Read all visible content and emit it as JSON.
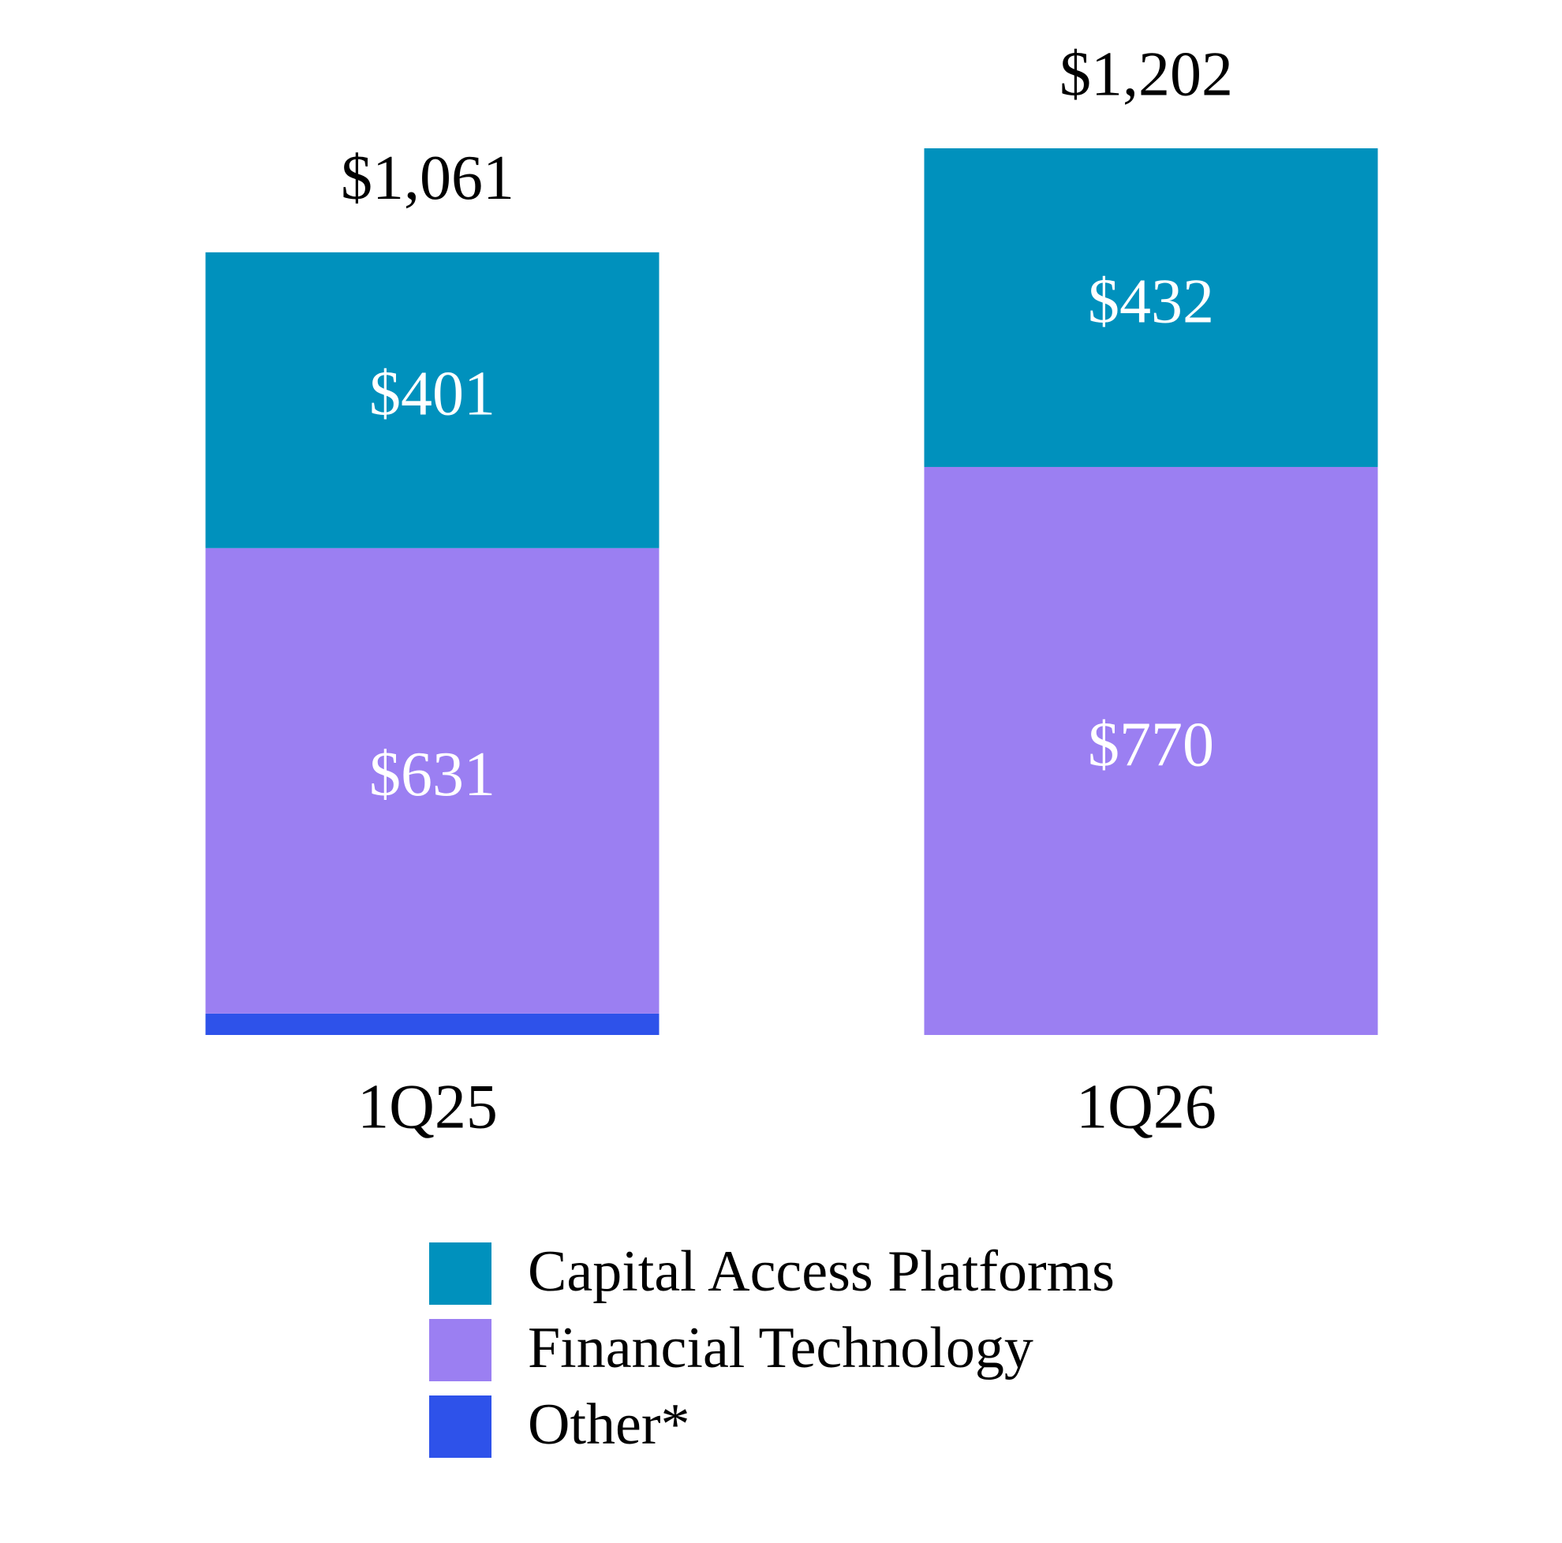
{
  "chart_data": {
    "type": "stacked-bar",
    "categories": [
      "1Q25",
      "1Q26"
    ],
    "series": [
      {
        "name": "Other*",
        "color": "#2e52ea",
        "values": [
          29,
          0
        ]
      },
      {
        "name": "Financial Technology",
        "color": "#9b7ff2",
        "values": [
          631,
          770
        ],
        "value_labels": [
          "$631",
          "$770"
        ]
      },
      {
        "name": "Capital Access Platforms",
        "color": "#0091bd",
        "values": [
          401,
          432
        ],
        "value_labels": [
          "$401",
          "$432"
        ]
      }
    ],
    "totals": {
      "values": [
        1061,
        1202
      ],
      "value_labels": [
        "$1,061",
        "$1,202"
      ]
    }
  }
}
